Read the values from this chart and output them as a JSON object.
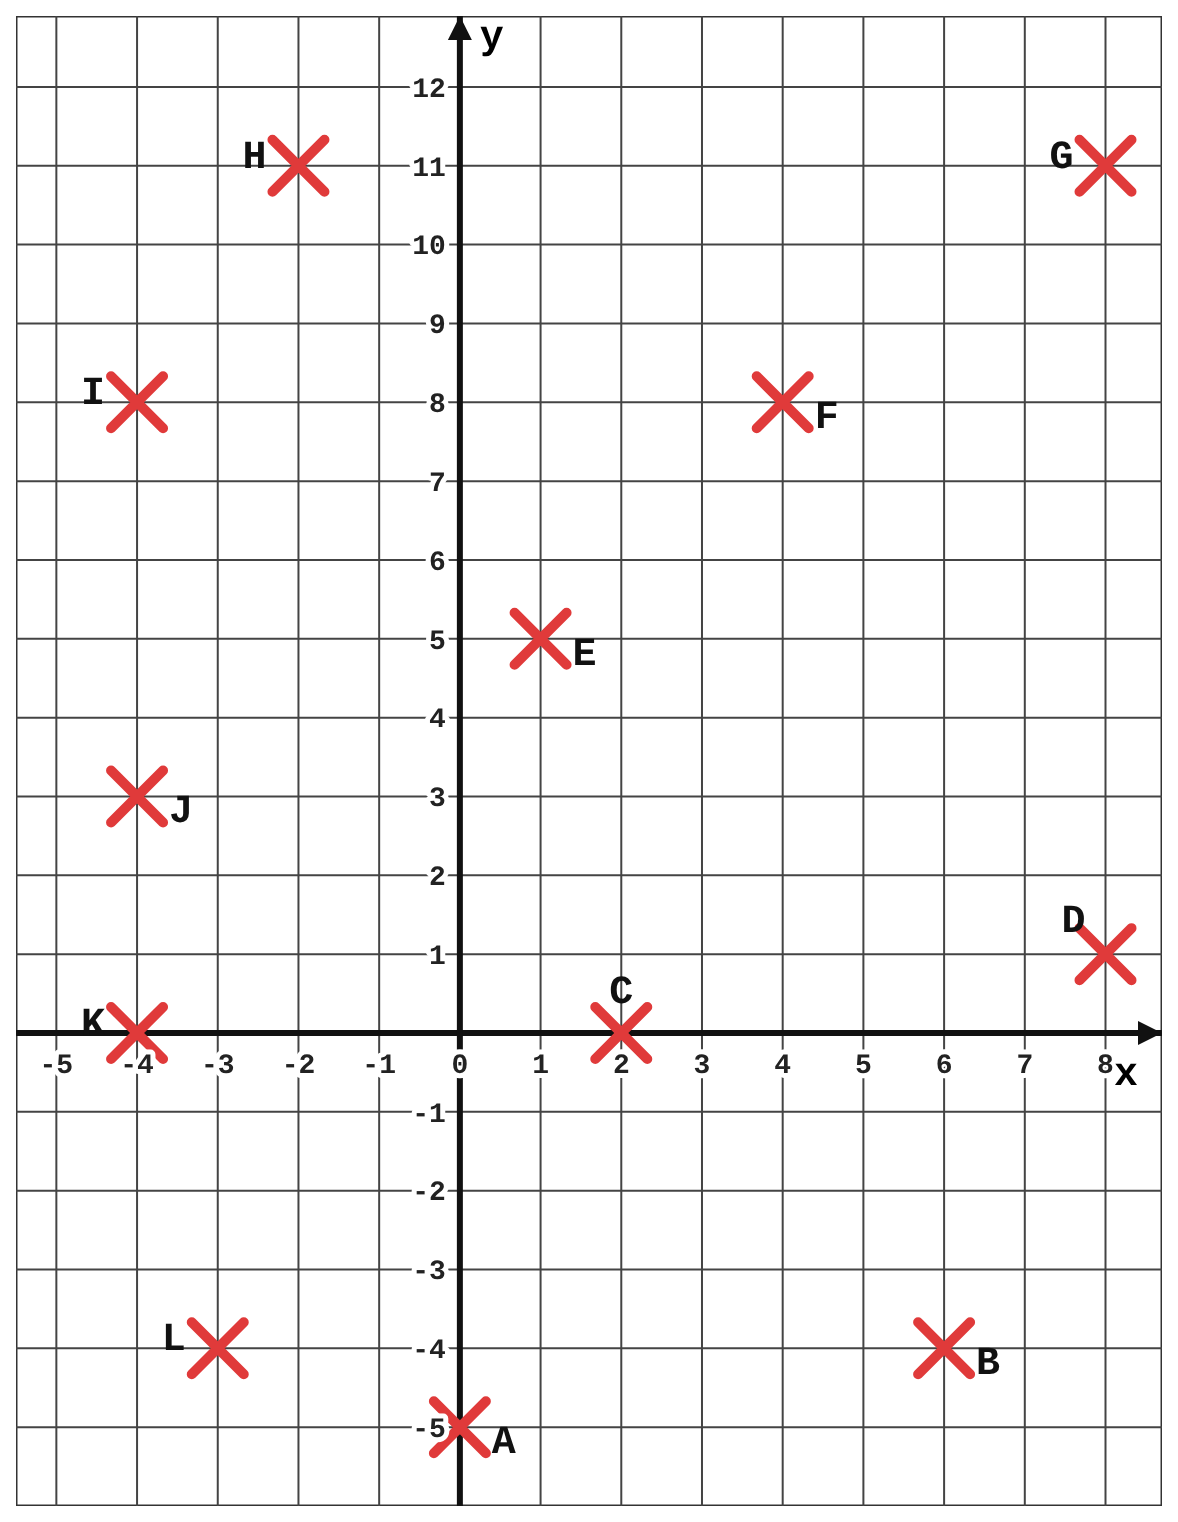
{
  "chart_data": {
    "type": "scatter",
    "xlabel": "x",
    "ylabel": "y",
    "x": [
      0,
      6,
      2,
      8,
      1,
      4,
      8,
      -2,
      -4,
      -4,
      -4,
      -3
    ],
    "series": [
      {
        "color": "#e03a3a",
        "values": [
          -5,
          -4,
          0,
          1,
          5,
          8,
          11,
          11,
          8,
          3,
          0,
          -4
        ]
      }
    ],
    "marker": "cross",
    "grid": true,
    "xlim": [
      -5.5,
      8.7
    ],
    "ylim": [
      -6,
      12.9
    ],
    "xticks": [
      -5,
      -4,
      -3,
      -2,
      -1,
      0,
      1,
      2,
      3,
      4,
      5,
      6,
      7,
      8
    ],
    "yticks": [
      -5,
      -4,
      -3,
      -2,
      -1,
      1,
      2,
      3,
      4,
      5,
      6,
      7,
      8,
      9,
      10,
      11,
      12
    ],
    "annotations": [
      {
        "text": "A",
        "x": 0,
        "y": -5
      },
      {
        "text": "B",
        "x": 6,
        "y": -4
      },
      {
        "text": "C",
        "x": 2,
        "y": 0
      },
      {
        "text": "D",
        "x": 8,
        "y": 1
      },
      {
        "text": "E",
        "x": 1,
        "y": 5
      },
      {
        "text": "F",
        "x": 4,
        "y": 8
      },
      {
        "text": "G",
        "x": 8,
        "y": 11
      },
      {
        "text": "H",
        "x": -2,
        "y": 11
      },
      {
        "text": "I",
        "x": -4,
        "y": 8
      },
      {
        "text": "J",
        "x": -4,
        "y": 3
      },
      {
        "text": "K",
        "x": -4,
        "y": 0
      },
      {
        "text": "L",
        "x": -3,
        "y": -4
      }
    ]
  }
}
